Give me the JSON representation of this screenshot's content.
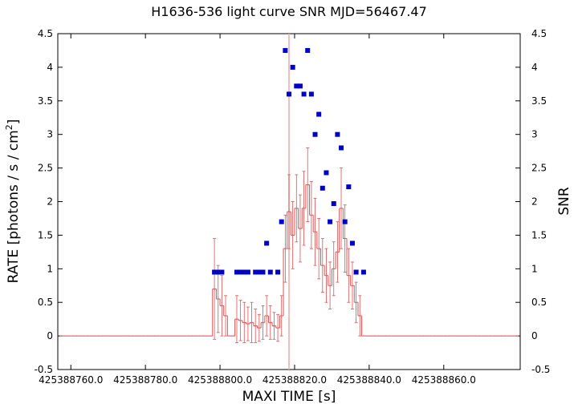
{
  "chart_data": {
    "type": "light_curve",
    "title": "H1636-536 light curve  SNR MJD=56467.47",
    "xlabel": "MAXI TIME [s]",
    "ylabel": [
      "RATE [photons / s / cm",
      "2",
      "]"
    ],
    "y2label": "SNR",
    "xlim": [
      425388756.5,
      425388880.5
    ],
    "xticks": [
      {
        "value": 425388760,
        "label": "425388760.0"
      },
      {
        "value": 425388780,
        "label": "425388780.0"
      },
      {
        "value": 425388800,
        "label": "425388800.0"
      },
      {
        "value": 425388820,
        "label": "425388820.0"
      },
      {
        "value": 425388840,
        "label": "425388840.0"
      },
      {
        "value": 425388860,
        "label": "425388860.0"
      }
    ],
    "ylim": [
      -0.5,
      4.5
    ],
    "yticks": [
      -0.5,
      0,
      0.5,
      1,
      1.5,
      2,
      2.5,
      3,
      3.5,
      4,
      4.5
    ],
    "y2lim": [
      -0.5,
      4.5
    ],
    "y2ticks": [
      -0.5,
      0,
      0.5,
      1,
      1.5,
      2,
      2.5,
      3,
      3.5,
      4,
      4.5
    ],
    "vline": 425388818.5,
    "vline_color": "#f0a8a8",
    "series": [
      {
        "name": "RATE",
        "color": "#e05050",
        "kind": "steps_errorbars",
        "x": [
          425388757.5,
          425388758.5,
          425388759.5,
          425388760.5,
          425388761.5,
          425388762.5,
          425388763.5,
          425388764.5,
          425388765.5,
          425388766.5,
          425388767.5,
          425388768.5,
          425388769.5,
          425388770.5,
          425388771.5,
          425388772.5,
          425388773.5,
          425388774.5,
          425388775.5,
          425388776.5,
          425388777.5,
          425388778.5,
          425388779.5,
          425388780.5,
          425388781.5,
          425388782.5,
          425388783.5,
          425388784.5,
          425388785.5,
          425388786.5,
          425388787.5,
          425388788.5,
          425388789.5,
          425388790.5,
          425388791.5,
          425388792.5,
          425388793.5,
          425388794.5,
          425388795.5,
          425388796.5,
          425388797.5,
          425388798.5,
          425388799.5,
          425388800.5,
          425388801.5,
          425388802.5,
          425388803.5,
          425388804.5,
          425388805.5,
          425388806.5,
          425388807.5,
          425388808.5,
          425388809.5,
          425388810.5,
          425388811.5,
          425388812.5,
          425388813.5,
          425388814.5,
          425388815.5,
          425388816.5,
          425388817.5,
          425388818.5,
          425388819.5,
          425388820.5,
          425388821.5,
          425388822.5,
          425388823.5,
          425388824.5,
          425388825.5,
          425388826.5,
          425388827.5,
          425388828.5,
          425388829.5,
          425388830.5,
          425388831.5,
          425388832.5,
          425388833.5,
          425388834.5,
          425388835.5,
          425388836.5,
          425388837.5,
          425388838.5,
          425388839.5,
          425388840.5,
          425388841.5,
          425388842.5,
          425388843.5,
          425388844.5,
          425388845.5,
          425388846.5,
          425388847.5,
          425388848.5,
          425388849.5,
          425388850.5,
          425388851.5,
          425388852.5,
          425388853.5,
          425388854.5,
          425388855.5,
          425388856.5,
          425388857.5,
          425388858.5,
          425388859.5,
          425388860.5,
          425388861.5,
          425388862.5,
          425388863.5,
          425388864.5,
          425388865.5,
          425388866.5,
          425388867.5,
          425388868.5,
          425388869.5,
          425388870.5,
          425388871.5,
          425388872.5,
          425388873.5,
          425388874.5,
          425388875.5,
          425388876.5,
          425388877.5,
          425388878.5,
          425388879.5
        ],
        "values": [
          0,
          0,
          0,
          0,
          0,
          0,
          0,
          0,
          0,
          0,
          0,
          0,
          0,
          0,
          0,
          0,
          0,
          0,
          0,
          0,
          0,
          0,
          0,
          0,
          0,
          0,
          0,
          0,
          0,
          0,
          0,
          0,
          0,
          0,
          0,
          0,
          0,
          0,
          0,
          0,
          0,
          0.7,
          0.55,
          0.45,
          0.3,
          0,
          0,
          0.25,
          0.23,
          0.2,
          0.18,
          0.2,
          0.15,
          0.12,
          0.2,
          0.3,
          0.2,
          0.15,
          0.12,
          0.3,
          1.3,
          1.85,
          1.5,
          1.9,
          1.6,
          1.9,
          2.25,
          1.8,
          1.55,
          1.3,
          1.05,
          0.9,
          0.75,
          1.0,
          1.25,
          1.9,
          1.45,
          0.9,
          0.75,
          0.5,
          0.3,
          0,
          0,
          0,
          0,
          0,
          0,
          0,
          0,
          0,
          0,
          0,
          0,
          0,
          0,
          0,
          0,
          0,
          0,
          0,
          0,
          0,
          0,
          0,
          0,
          0,
          0,
          0,
          0,
          0,
          0,
          0,
          0,
          0,
          0,
          0,
          0,
          0,
          0,
          0,
          0,
          0,
          0
        ],
        "errors": [
          0,
          0,
          0,
          0,
          0,
          0,
          0,
          0,
          0,
          0,
          0,
          0,
          0,
          0,
          0,
          0,
          0,
          0,
          0,
          0,
          0,
          0,
          0,
          0,
          0,
          0,
          0,
          0,
          0,
          0,
          0,
          0,
          0,
          0,
          0,
          0,
          0,
          0,
          0,
          0,
          0,
          0.75,
          0.5,
          0.45,
          0.3,
          0,
          0,
          0.35,
          0.3,
          0.3,
          0.25,
          0.3,
          0.25,
          0.2,
          0.25,
          0.3,
          0.25,
          0.2,
          0.2,
          0.3,
          0.5,
          0.55,
          0.5,
          0.5,
          0.5,
          0.55,
          0.55,
          0.5,
          0.5,
          0.45,
          0.4,
          0.4,
          0.35,
          0.4,
          0.45,
          0.6,
          0.5,
          0.4,
          0.35,
          0.3,
          0.3,
          0,
          0,
          0,
          0,
          0,
          0,
          0,
          0,
          0,
          0,
          0,
          0,
          0,
          0,
          0,
          0,
          0,
          0,
          0,
          0,
          0,
          0,
          0,
          0,
          0,
          0,
          0,
          0,
          0,
          0,
          0,
          0,
          0,
          0,
          0,
          0,
          0,
          0,
          0,
          0,
          0,
          0
        ]
      },
      {
        "name": "SNR",
        "color": "#0000cc",
        "kind": "squares",
        "axis": "y2",
        "x": [
          425388798.5,
          425388799.5,
          425388800.5,
          425388804.5,
          425388805.5,
          425388806.5,
          425388807.5,
          425388809.5,
          425388810.5,
          425388811.5,
          425388812.5,
          425388813.5,
          425388815.5,
          425388816.5,
          425388817.5,
          425388818.5,
          425388819.5,
          425388820.5,
          425388821.5,
          425388822.5,
          425388823.5,
          425388824.5,
          425388825.5,
          425388826.5,
          425388827.5,
          425388828.5,
          425388829.5,
          425388830.5,
          425388831.5,
          425388832.5,
          425388833.5,
          425388834.5,
          425388835.5,
          425388836.5,
          425388838.5
        ],
        "values": [
          0.95,
          0.95,
          0.95,
          0.95,
          0.95,
          0.95,
          0.95,
          0.95,
          0.95,
          0.95,
          1.38,
          0.95,
          0.95,
          1.7,
          4.25,
          3.6,
          4.0,
          3.72,
          3.72,
          3.6,
          4.25,
          3.6,
          3.0,
          3.3,
          2.2,
          2.43,
          1.7,
          1.97,
          3.0,
          2.8,
          1.7,
          2.22,
          1.38,
          0.95,
          0.95
        ]
      }
    ]
  }
}
